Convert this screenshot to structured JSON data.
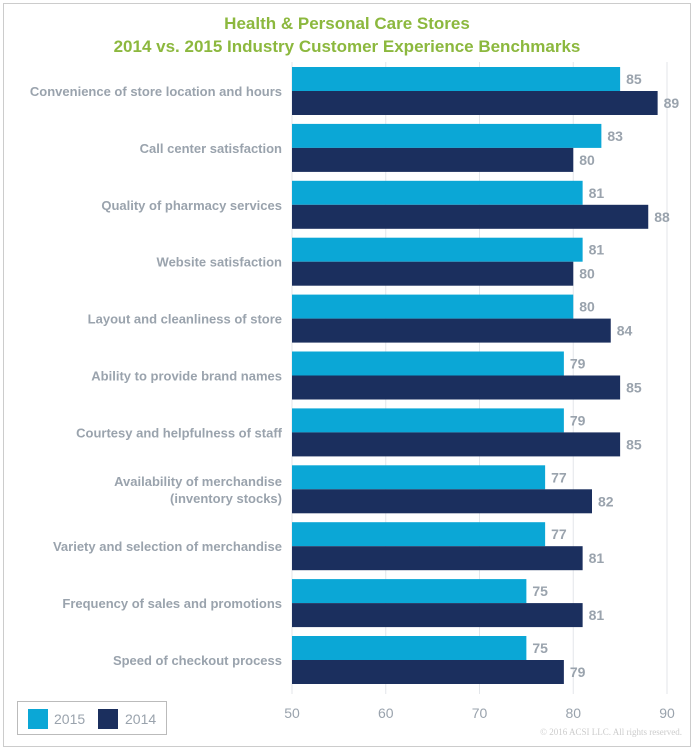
{
  "chart_data": {
    "type": "bar",
    "orientation": "horizontal",
    "title": "Health & Personal Care Stores",
    "subtitle": "2014 vs. 2015 Industry Customer Experience Benchmarks",
    "categories": [
      "Convenience of store location and hours",
      "Call center satisfaction",
      "Quality of pharmacy services",
      "Website satisfaction",
      "Layout and cleanliness of store",
      "Ability to provide brand names",
      "Courtesy and helpfulness of staff",
      "Availability of merchandise\n(inventory stocks)",
      "Variety and selection of merchandise",
      "Frequency of sales and promotions",
      "Speed of checkout process"
    ],
    "series": [
      {
        "name": "2015",
        "color": "#0ba7d6",
        "values": [
          85,
          83,
          81,
          81,
          80,
          79,
          79,
          77,
          77,
          75,
          75
        ]
      },
      {
        "name": "2014",
        "color": "#1b2f5e",
        "values": [
          89,
          80,
          88,
          80,
          84,
          85,
          85,
          82,
          81,
          81,
          79
        ]
      }
    ],
    "xlim": [
      50,
      90
    ],
    "xticks": [
      50,
      60,
      70,
      80,
      90
    ],
    "grid": true,
    "legend": "bottom-left"
  },
  "copyright": "© 2016 ACSI LLC. All rights reserved."
}
